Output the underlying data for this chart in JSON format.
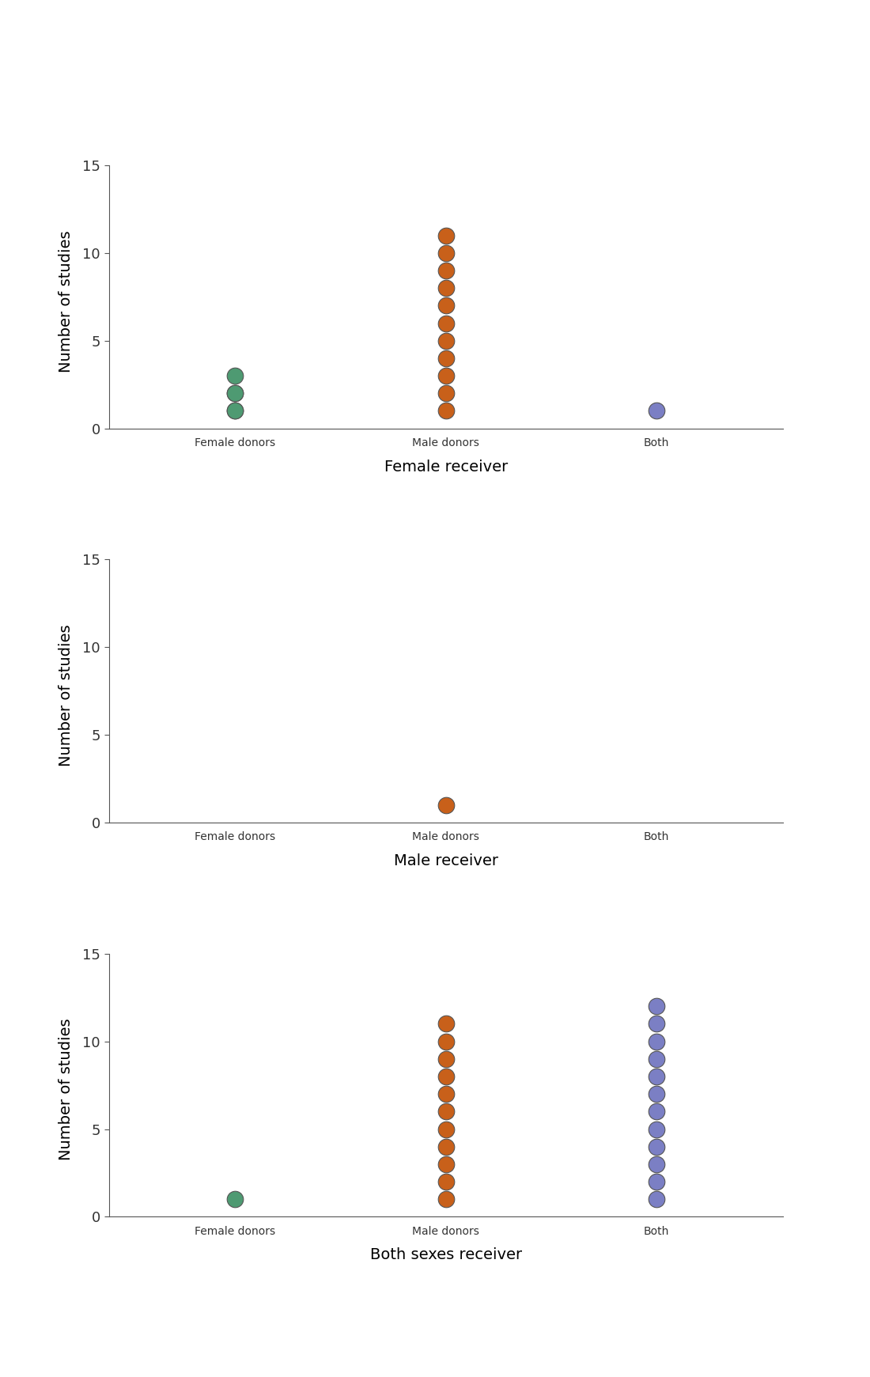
{
  "panels": [
    {
      "xlabel": "Female receiver",
      "categories": [
        "Female donors",
        "Male donors",
        "Both"
      ],
      "data": {
        "Female donors": {
          "values": [
            1,
            1,
            2,
            2,
            3
          ],
          "color": "#4e9a72"
        },
        "Male donors": {
          "values": [
            1,
            2,
            3,
            4,
            5,
            6,
            7,
            8,
            9,
            10,
            11
          ],
          "color": "#c8601a"
        },
        "Both": {
          "values": [
            1
          ],
          "color": "#7b7fc4"
        }
      }
    },
    {
      "xlabel": "Male receiver",
      "categories": [
        "Female donors",
        "Male donors",
        "Both"
      ],
      "data": {
        "Female donors": {
          "values": [],
          "color": "#4e9a72"
        },
        "Male donors": {
          "values": [
            1
          ],
          "color": "#c8601a"
        },
        "Both": {
          "values": [],
          "color": "#7b7fc4"
        }
      }
    },
    {
      "xlabel": "Both sexes receiver",
      "categories": [
        "Female donors",
        "Male donors",
        "Both"
      ],
      "data": {
        "Female donors": {
          "values": [
            1
          ],
          "color": "#4e9a72"
        },
        "Male donors": {
          "values": [
            1,
            2,
            3,
            4,
            5,
            6,
            7,
            8,
            9,
            10,
            11
          ],
          "color": "#c8601a"
        },
        "Both": {
          "values": [
            1,
            2,
            3,
            4,
            5,
            6,
            7,
            8,
            9,
            10,
            11,
            12
          ],
          "color": "#7b7fc4"
        }
      }
    }
  ],
  "ylabel": "Number of studies",
  "ylim": [
    -0.5,
    15
  ],
  "yticks": [
    0,
    5,
    10,
    15
  ],
  "marker_size": 220,
  "background_color": "#ffffff",
  "text_color": "#333333",
  "font_size": 13,
  "xlabel_font_size": 14,
  "ylabel_font_size": 14
}
